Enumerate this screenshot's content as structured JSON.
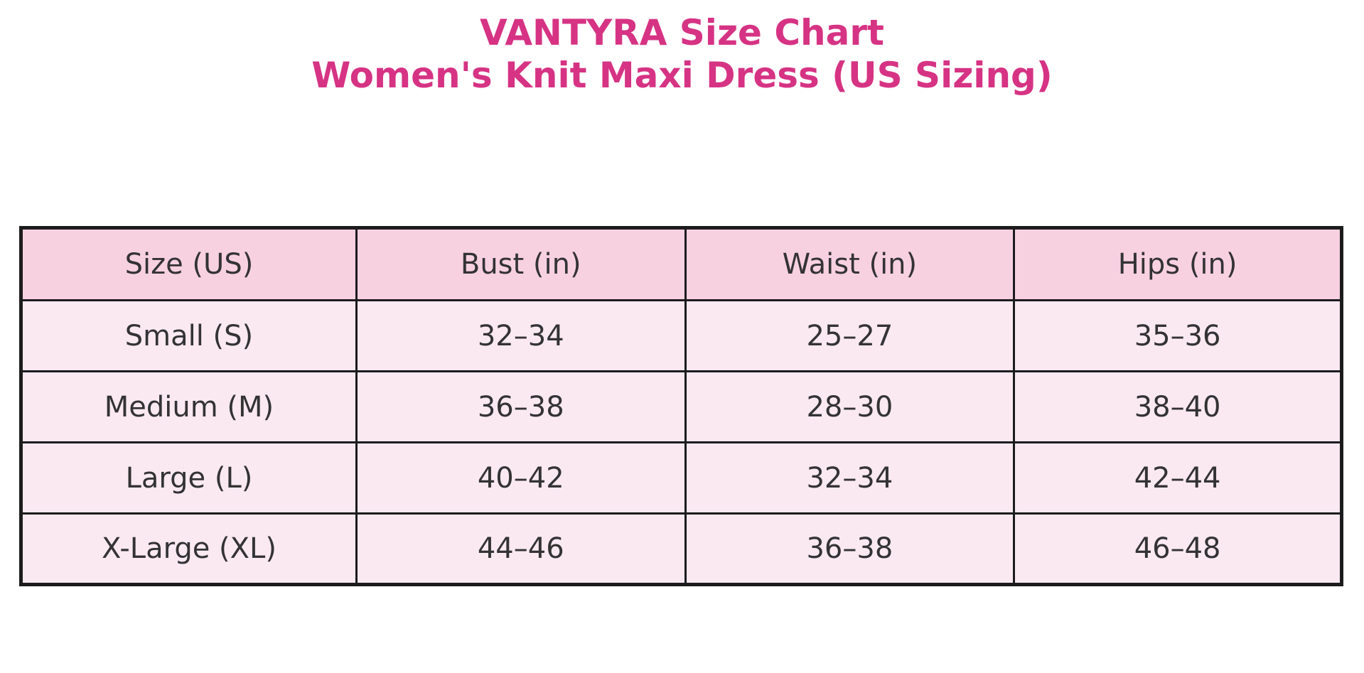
{
  "title": {
    "line1": "VANTYRA Size Chart",
    "line2": "Women's Knit Maxi Dress (US Sizing)"
  },
  "colors": {
    "title_text": "#d63384",
    "header_bg": "#f8d1e1",
    "row_bg": "#fbe9f1",
    "border": "#1c1c1c",
    "cell_text": "#333333",
    "page_bg": "#ffffff"
  },
  "table": {
    "headers": [
      "Size (US)",
      "Bust (in)",
      "Waist (in)",
      "Hips (in)"
    ],
    "rows": [
      [
        "Small (S)",
        "32–34",
        "25–27",
        "35–36"
      ],
      [
        "Medium (M)",
        "36–38",
        "28–30",
        "38–40"
      ],
      [
        "Large (L)",
        "40–42",
        "32–34",
        "42–44"
      ],
      [
        "X-Large (XL)",
        "44–46",
        "36–38",
        "46–48"
      ]
    ]
  },
  "chart_data": {
    "type": "table",
    "title": "VANTYRA Size Chart — Women's Knit Maxi Dress (US Sizing)",
    "columns": [
      "Size (US)",
      "Bust (in)",
      "Waist (in)",
      "Hips (in)"
    ],
    "rows": [
      {
        "size": "Small (S)",
        "bust_in": "32–34",
        "waist_in": "25–27",
        "hips_in": "35–36"
      },
      {
        "size": "Medium (M)",
        "bust_in": "36–38",
        "waist_in": "28–30",
        "hips_in": "38–40"
      },
      {
        "size": "Large (L)",
        "bust_in": "40–42",
        "waist_in": "32–34",
        "hips_in": "42–44"
      },
      {
        "size": "X-Large (XL)",
        "bust_in": "44–46",
        "waist_in": "36–38",
        "hips_in": "46–48"
      }
    ],
    "legend_position": "none",
    "grid": "full-borders"
  }
}
